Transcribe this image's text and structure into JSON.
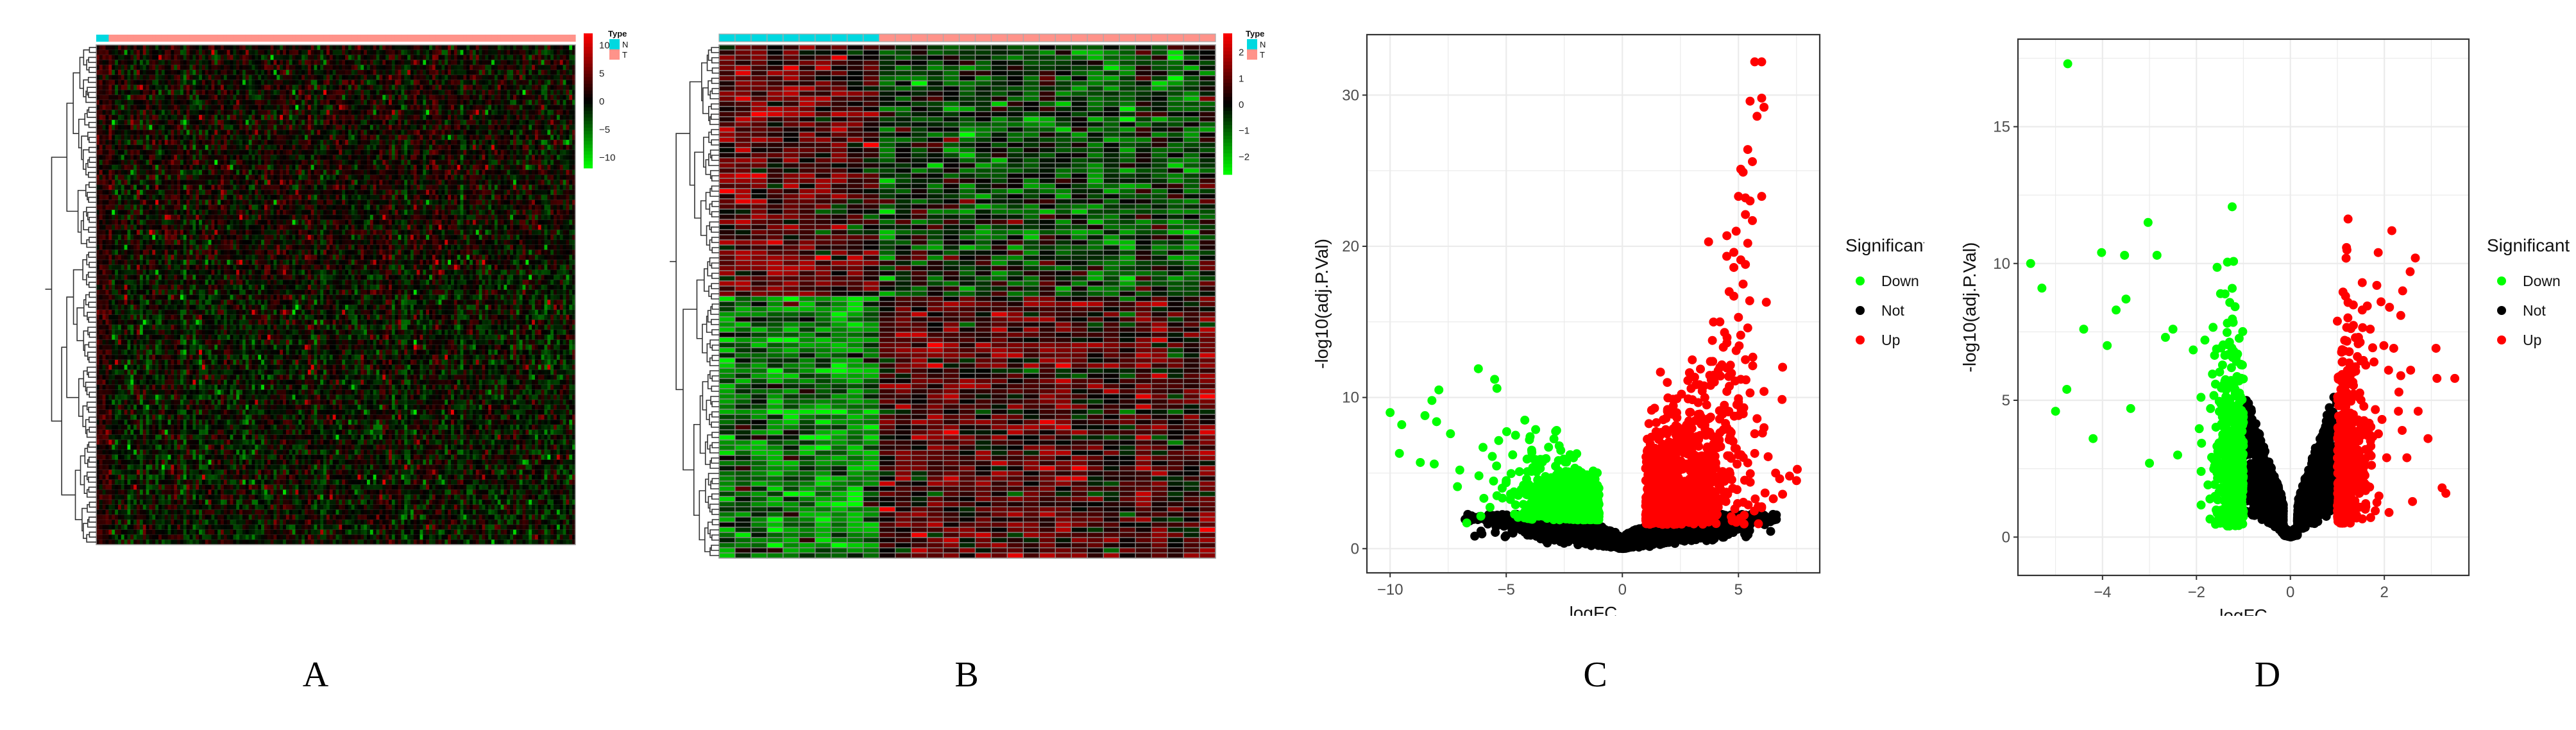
{
  "panel_labels": [
    "A",
    "B",
    "C",
    "D"
  ],
  "chart_data": [
    {
      "type": "heatmap",
      "panel": "A",
      "annotation_title": "Type",
      "annotation_levels": [
        {
          "label": "N",
          "color": "#00D8E0"
        },
        {
          "label": "T",
          "color": "#FF938A"
        }
      ],
      "n_normal_columns": 4,
      "n_tumor_columns": 150,
      "n_rows": 100,
      "color_scale": {
        "low": "#00FF00",
        "mid": "#000000",
        "high": "#FF0000",
        "min": -12,
        "max": 12
      },
      "legend_ticks": [
        10,
        5,
        0,
        -5,
        -10
      ],
      "row_dendrogram": true,
      "seed": 7
    },
    {
      "type": "heatmap",
      "panel": "B",
      "annotation_title": "Type",
      "annotation_levels": [
        {
          "label": "N",
          "color": "#00D8E0"
        },
        {
          "label": "T",
          "color": "#FF938A"
        }
      ],
      "n_normal_columns": 10,
      "n_tumor_columns": 21,
      "n_rows": 100,
      "upregulated_rows": 49,
      "color_scale": {
        "low": "#00FF00",
        "mid": "#000000",
        "high": "#FF0000",
        "min": -2.7,
        "max": 2.7
      },
      "legend_ticks": [
        2,
        1,
        0,
        -1,
        -2
      ],
      "row_dendrogram": true,
      "seed": 11
    },
    {
      "type": "scatter",
      "panel": "C",
      "title": "",
      "xlabel": "logFC",
      "ylabel": "-log10(adj.P.Val)",
      "xlim": [
        -11,
        8.5
      ],
      "ylim": [
        -1.6,
        34
      ],
      "xticks": [
        -10,
        -5,
        0,
        5
      ],
      "yticks": [
        0,
        10,
        20,
        30
      ],
      "grid": true,
      "legend": {
        "title": "Significant",
        "position": "right",
        "entries": [
          {
            "label": "Down",
            "color": "#00FF00"
          },
          {
            "label": "Not",
            "color": "#000000"
          },
          {
            "label": "Up",
            "color": "#FF0000"
          }
        ]
      },
      "thresholds": {
        "logFC": 1
      },
      "highlight_points": {
        "Up": [
          [
            5.7,
            32.2
          ],
          [
            6.0,
            32.2
          ],
          [
            5.5,
            29.6
          ],
          [
            6.0,
            29.8
          ],
          [
            6.1,
            29.2
          ],
          [
            5.8,
            28.6
          ],
          [
            5.4,
            26.4
          ],
          [
            5.6,
            25.6
          ],
          [
            5.1,
            25.1
          ],
          [
            5.2,
            24.9
          ],
          [
            5.0,
            23.3
          ],
          [
            5.3,
            23.2
          ],
          [
            5.5,
            23.0
          ],
          [
            6.0,
            23.3
          ],
          [
            5.3,
            22.1
          ],
          [
            5.6,
            21.7
          ],
          [
            4.5,
            20.7
          ],
          [
            4.9,
            21.0
          ],
          [
            5.4,
            20.2
          ],
          [
            4.8,
            19.6
          ],
          [
            5.1,
            19.1
          ],
          [
            4.8,
            18.6
          ],
          [
            5.3,
            18.8
          ],
          [
            5.2,
            17.5
          ],
          [
            4.6,
            17.0
          ],
          [
            4.8,
            16.7
          ],
          [
            6.2,
            16.3
          ],
          [
            4.2,
            15.0
          ],
          [
            5.0,
            15.3
          ],
          [
            5.4,
            14.6
          ],
          [
            4.4,
            14.3
          ],
          [
            4.9,
            13.1
          ],
          [
            5.3,
            12.5
          ],
          [
            6.9,
            12.0
          ],
          [
            4.2,
            12.0
          ],
          [
            4.7,
            11.6
          ],
          [
            5.1,
            11.2
          ],
          [
            3.8,
            10.8
          ],
          [
            4.5,
            10.4
          ],
          [
            5.5,
            10.3
          ],
          [
            6.1,
            10.4
          ],
          [
            5.0,
            9.7
          ],
          [
            5.8,
            8.6
          ],
          [
            3.8,
            8.7
          ],
          [
            4.5,
            8.0
          ],
          [
            6.1,
            8.0
          ],
          [
            5.7,
            7.6
          ],
          [
            3.6,
            7.5
          ],
          [
            4.6,
            7.2
          ],
          [
            5.0,
            6.2
          ],
          [
            5.7,
            6.3
          ],
          [
            3.4,
            5.6
          ],
          [
            4.0,
            5.5
          ],
          [
            6.6,
            5.0
          ],
          [
            7.2,
            4.8
          ],
          [
            7.5,
            4.5
          ],
          [
            6.9,
            3.6
          ],
          [
            6.5,
            3.3
          ]
        ],
        "Down": [
          [
            -6.2,
            11.9
          ],
          [
            -5.5,
            11.2
          ],
          [
            -5.4,
            10.6
          ],
          [
            -7.9,
            10.5
          ],
          [
            -8.2,
            9.8
          ],
          [
            -10.0,
            9.0
          ],
          [
            -9.5,
            8.2
          ],
          [
            -8.5,
            8.8
          ],
          [
            -8.0,
            8.4
          ],
          [
            -4.6,
            7.5
          ],
          [
            -4.0,
            7.2
          ],
          [
            -4.2,
            8.5
          ],
          [
            -7.4,
            7.6
          ],
          [
            -9.6,
            6.3
          ],
          [
            -8.7,
            5.7
          ],
          [
            -8.1,
            5.6
          ],
          [
            -7.0,
            5.2
          ],
          [
            -7.1,
            4.1
          ],
          [
            -6.0,
            6.7
          ],
          [
            -5.6,
            6.1
          ],
          [
            -5.0,
            4.5
          ],
          [
            -3.1,
            4.6
          ],
          [
            -2.2,
            4.9
          ],
          [
            -1.8,
            3.6
          ],
          [
            -6.7,
            1.7
          ],
          [
            -5.4,
            3.5
          ],
          [
            -3.7,
            3.8
          ],
          [
            -2.6,
            3.2
          ],
          [
            -4.6,
            2.9
          ]
        ]
      },
      "seed": 3
    },
    {
      "type": "scatter",
      "panel": "D",
      "title": "",
      "xlabel": "logFC",
      "ylabel": "-log10(adj.P.Val)",
      "xlim": [
        -5.8,
        3.8
      ],
      "ylim": [
        -1.4,
        18.2
      ],
      "xticks": [
        -4,
        -2,
        0,
        2
      ],
      "yticks": [
        0,
        5,
        10,
        15
      ],
      "grid": true,
      "legend": {
        "title": "Significant",
        "position": "right",
        "entries": [
          {
            "label": "Down",
            "color": "#00FF00"
          },
          {
            "label": "Not",
            "color": "#000000"
          },
          {
            "label": "Up",
            "color": "#FF0000"
          }
        ]
      },
      "thresholds": {
        "logFC": 1
      },
      "highlight_points": {
        "Down": [
          [
            -4.74,
            17.3
          ],
          [
            -3.03,
            11.5
          ],
          [
            -4.02,
            10.4
          ],
          [
            -3.53,
            10.3
          ],
          [
            -2.84,
            10.3
          ],
          [
            -5.53,
            10.0
          ],
          [
            -5.29,
            9.1
          ],
          [
            -3.71,
            8.3
          ],
          [
            -3.5,
            8.7
          ],
          [
            -2.5,
            7.6
          ],
          [
            -2.66,
            7.3
          ],
          [
            -1.82,
            7.2
          ],
          [
            -4.4,
            7.6
          ],
          [
            -3.9,
            7.0
          ],
          [
            -4.76,
            5.4
          ],
          [
            -5.0,
            4.6
          ],
          [
            -4.2,
            3.6
          ],
          [
            -3.4,
            4.7
          ],
          [
            -3.0,
            2.7
          ],
          [
            -2.4,
            3.0
          ],
          [
            -1.9,
            2.4
          ]
        ],
        "Up": [
          [
            2.16,
            11.2
          ],
          [
            1.87,
            10.4
          ],
          [
            2.66,
            10.2
          ],
          [
            2.55,
            9.7
          ],
          [
            1.53,
            9.3
          ],
          [
            1.84,
            9.2
          ],
          [
            2.39,
            9.0
          ],
          [
            1.93,
            8.6
          ],
          [
            2.11,
            8.4
          ],
          [
            1.53,
            8.3
          ],
          [
            2.35,
            8.1
          ],
          [
            1.7,
            7.6
          ],
          [
            1.45,
            7.3
          ],
          [
            1.99,
            7.0
          ],
          [
            2.2,
            6.9
          ],
          [
            3.1,
            6.9
          ],
          [
            1.78,
            6.4
          ],
          [
            2.09,
            6.1
          ],
          [
            2.56,
            6.1
          ],
          [
            2.35,
            5.9
          ],
          [
            3.12,
            5.8
          ],
          [
            3.5,
            5.8
          ],
          [
            2.31,
            5.3
          ],
          [
            2.3,
            4.6
          ],
          [
            2.38,
            3.9
          ],
          [
            1.95,
            4.3
          ],
          [
            2.72,
            4.6
          ],
          [
            1.6,
            3.2
          ],
          [
            2.93,
            3.6
          ],
          [
            3.23,
            1.8
          ],
          [
            3.31,
            1.6
          ],
          [
            2.05,
            2.9
          ],
          [
            2.48,
            2.9
          ],
          [
            2.6,
            1.3
          ],
          [
            2.1,
            0.9
          ],
          [
            1.6,
            1.7
          ]
        ]
      },
      "seed": 5
    }
  ]
}
